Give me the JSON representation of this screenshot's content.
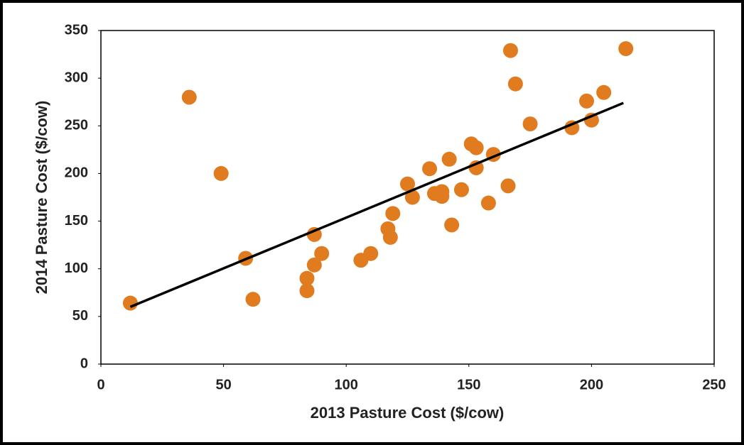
{
  "chart_data": {
    "type": "scatter",
    "x_label": "2013 Pasture Cost ($/cow)",
    "y_label": "2014 Pasture Cost ($/cow)",
    "xlim": [
      0,
      250
    ],
    "xticks": [
      0,
      50,
      100,
      150,
      200,
      250
    ],
    "ylim": [
      0,
      350
    ],
    "yticks": [
      0,
      50,
      100,
      150,
      200,
      250,
      300,
      350
    ],
    "color": "#e07b20",
    "x": [
      12,
      36,
      49,
      59,
      62,
      84,
      84,
      87,
      87,
      90,
      106,
      110,
      117,
      118,
      119,
      125,
      127,
      134,
      136,
      139,
      139,
      142,
      143,
      147,
      151,
      153,
      153,
      158,
      160,
      166,
      167,
      169,
      175,
      192,
      198,
      200,
      205,
      214
    ],
    "values": [
      64,
      280,
      200,
      111,
      68,
      77,
      90,
      104,
      136,
      116,
      109,
      116,
      142,
      133,
      158,
      189,
      175,
      205,
      179,
      181,
      176,
      215,
      146,
      183,
      231,
      227,
      206,
      169,
      220,
      187,
      329,
      294,
      252,
      248,
      276,
      256,
      285,
      331
    ],
    "trendline": {
      "x": [
        12,
        213
      ],
      "values": [
        60,
        274
      ],
      "color": "#000000"
    }
  }
}
